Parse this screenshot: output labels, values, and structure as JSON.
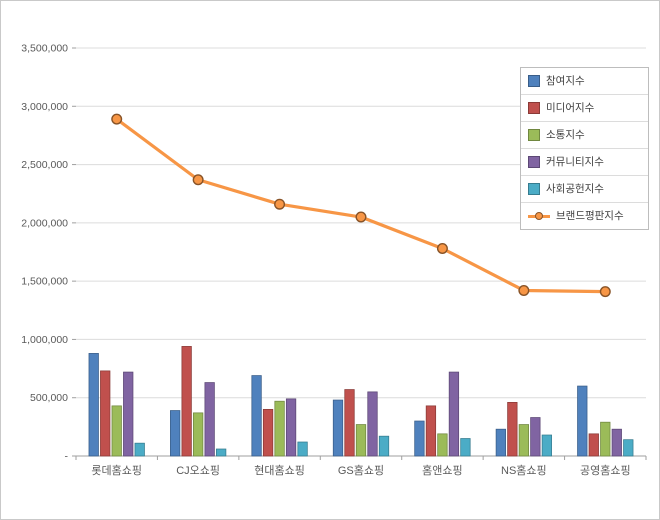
{
  "chart_data": {
    "type": "bar",
    "subtype": "grouped-bars-with-line-overlay",
    "title": "",
    "xlabel": "",
    "ylabel": "",
    "categories": [
      "롯데홈쇼핑",
      "CJ오쇼핑",
      "현대홈쇼핑",
      "GS홈쇼핑",
      "홈앤쇼핑",
      "NS홈쇼핑",
      "공영홈쇼핑"
    ],
    "series": [
      {
        "name": "참여지수",
        "type": "bar",
        "color": "#4F81BD",
        "values": [
          880000,
          390000,
          690000,
          480000,
          300000,
          230000,
          600000
        ]
      },
      {
        "name": "미디어지수",
        "type": "bar",
        "color": "#C0504D",
        "values": [
          730000,
          940000,
          400000,
          570000,
          430000,
          460000,
          190000
        ]
      },
      {
        "name": "소통지수",
        "type": "bar",
        "color": "#9BBB59",
        "values": [
          430000,
          370000,
          470000,
          270000,
          190000,
          270000,
          290000
        ]
      },
      {
        "name": "커뮤니티지수",
        "type": "bar",
        "color": "#8064A2",
        "values": [
          720000,
          630000,
          490000,
          550000,
          720000,
          330000,
          230000
        ]
      },
      {
        "name": "사회공헌지수",
        "type": "bar",
        "color": "#4BACC6",
        "values": [
          110000,
          60000,
          120000,
          170000,
          150000,
          180000,
          140000
        ]
      },
      {
        "name": "브랜드평판지수",
        "type": "line",
        "color": "#F79646",
        "values": [
          2890000,
          2370000,
          2160000,
          2050000,
          1780000,
          1420000,
          1410000
        ]
      }
    ],
    "ylim": [
      0,
      3500000
    ],
    "ytick_step": 500000,
    "ytick_labels": [
      "-",
      "500,000",
      "1,000,000",
      "1,500,000",
      "2,000,000",
      "2,500,000",
      "3,000,000",
      "3,500,000"
    ],
    "grid": true,
    "legend_position": "top-right"
  },
  "style": {
    "axis_label_color": "#595959",
    "grid_color": "#dcdcdc",
    "axis_line_color": "#9f9f9f",
    "legend_border_color": "#bdbdbd",
    "background_color": "#ffffff"
  }
}
